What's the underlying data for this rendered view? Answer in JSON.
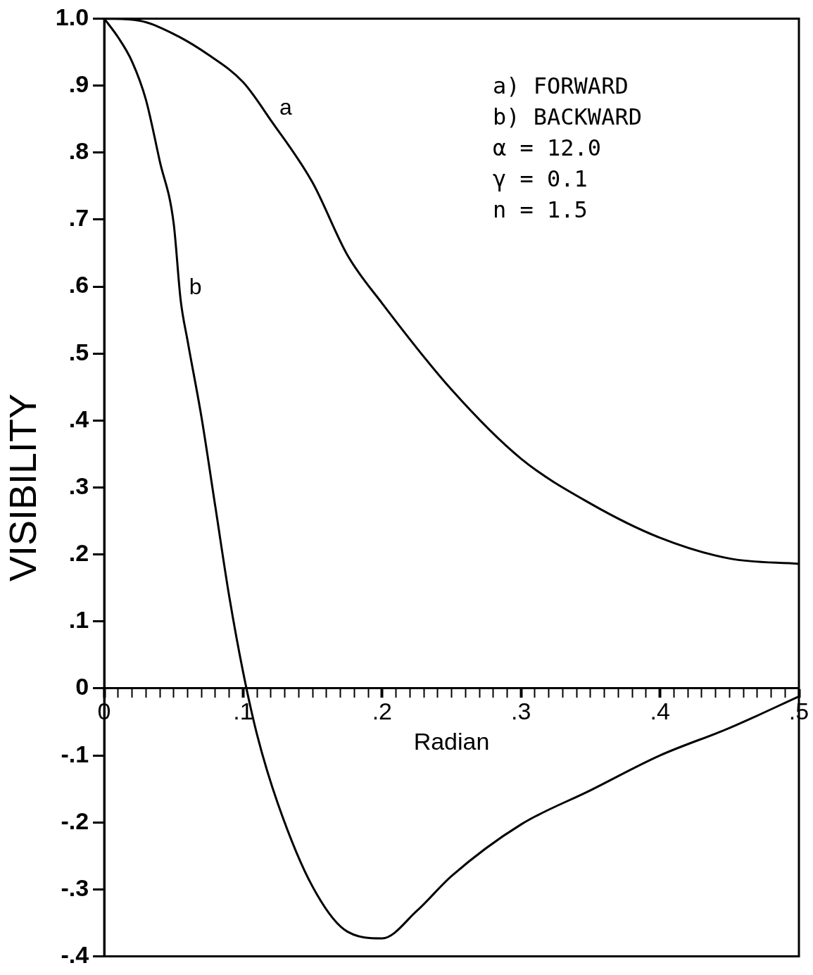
{
  "chart_data": {
    "type": "line",
    "xlabel": "Radian",
    "ylabel": "VISIBILITY",
    "xlim": [
      0,
      0.5
    ],
    "ylim": [
      -0.4,
      1.0
    ],
    "xticks": [
      {
        "value": 0,
        "label": "0"
      },
      {
        "value": 0.01,
        "label": null
      },
      {
        "value": 0.02,
        "label": null
      },
      {
        "value": 0.03,
        "label": null
      },
      {
        "value": 0.04,
        "label": null
      },
      {
        "value": 0.05,
        "label": null
      },
      {
        "value": 0.06,
        "label": null
      },
      {
        "value": 0.07,
        "label": null
      },
      {
        "value": 0.08,
        "label": null
      },
      {
        "value": 0.09,
        "label": null
      },
      {
        "value": 0.1,
        "label": ".1"
      },
      {
        "value": 0.11,
        "label": null
      },
      {
        "value": 0.12,
        "label": null
      },
      {
        "value": 0.13,
        "label": null
      },
      {
        "value": 0.14,
        "label": null
      },
      {
        "value": 0.15,
        "label": null
      },
      {
        "value": 0.16,
        "label": null
      },
      {
        "value": 0.17,
        "label": null
      },
      {
        "value": 0.18,
        "label": null
      },
      {
        "value": 0.19,
        "label": null
      },
      {
        "value": 0.2,
        "label": ".2"
      },
      {
        "value": 0.21,
        "label": null
      },
      {
        "value": 0.22,
        "label": null
      },
      {
        "value": 0.23,
        "label": null
      },
      {
        "value": 0.24,
        "label": null
      },
      {
        "value": 0.25,
        "label": null
      },
      {
        "value": 0.26,
        "label": null
      },
      {
        "value": 0.27,
        "label": null
      },
      {
        "value": 0.28,
        "label": null
      },
      {
        "value": 0.29,
        "label": null
      },
      {
        "value": 0.3,
        "label": ".3"
      },
      {
        "value": 0.31,
        "label": null
      },
      {
        "value": 0.32,
        "label": null
      },
      {
        "value": 0.33,
        "label": null
      },
      {
        "value": 0.34,
        "label": null
      },
      {
        "value": 0.35,
        "label": null
      },
      {
        "value": 0.36,
        "label": null
      },
      {
        "value": 0.37,
        "label": null
      },
      {
        "value": 0.38,
        "label": null
      },
      {
        "value": 0.39,
        "label": null
      },
      {
        "value": 0.4,
        "label": ".4"
      },
      {
        "value": 0.41,
        "label": null
      },
      {
        "value": 0.42,
        "label": null
      },
      {
        "value": 0.43,
        "label": null
      },
      {
        "value": 0.44,
        "label": null
      },
      {
        "value": 0.45,
        "label": null
      },
      {
        "value": 0.46,
        "label": null
      },
      {
        "value": 0.47,
        "label": null
      },
      {
        "value": 0.48,
        "label": null
      },
      {
        "value": 0.49,
        "label": null
      },
      {
        "value": 0.5,
        "label": ".5"
      }
    ],
    "yticks": [
      {
        "value": 1.0,
        "label": "1.0"
      },
      {
        "value": 0.9,
        "label": ".9"
      },
      {
        "value": 0.8,
        "label": ".8"
      },
      {
        "value": 0.7,
        "label": ".7"
      },
      {
        "value": 0.6,
        "label": ".6"
      },
      {
        "value": 0.5,
        "label": ".5"
      },
      {
        "value": 0.4,
        "label": ".4"
      },
      {
        "value": 0.3,
        "label": ".3"
      },
      {
        "value": 0.2,
        "label": ".2"
      },
      {
        "value": 0.1,
        "label": ".1"
      },
      {
        "value": 0,
        "label": "0"
      },
      {
        "value": -0.1,
        "label": "-.1"
      },
      {
        "value": -0.2,
        "label": "-.2"
      },
      {
        "value": -0.3,
        "label": "-.3"
      },
      {
        "value": -0.4,
        "label": "-.4"
      }
    ],
    "marker": "none",
    "series": [
      {
        "name": "a",
        "color": "#000000",
        "x": [
          0,
          0.025,
          0.05,
          0.075,
          0.1,
          0.12,
          0.15,
          0.175,
          0.2,
          0.25,
          0.3,
          0.35,
          0.4,
          0.45,
          0.5
        ],
        "values": [
          1.0,
          0.997,
          0.977,
          0.946,
          0.905,
          0.848,
          0.755,
          0.647,
          0.575,
          0.446,
          0.343,
          0.276,
          0.225,
          0.194,
          0.186
        ]
      },
      {
        "name": "b",
        "color": "#000000",
        "x": [
          0,
          0.01,
          0.02,
          0.03,
          0.04,
          0.05,
          0.055,
          0.06,
          0.07,
          0.08,
          0.09,
          0.1,
          0.11,
          0.125,
          0.15,
          0.175,
          0.2,
          0.225,
          0.25,
          0.3,
          0.35,
          0.4,
          0.45,
          0.5
        ],
        "values": [
          1.0,
          0.972,
          0.936,
          0.879,
          0.787,
          0.694,
          0.58,
          0.519,
          0.405,
          0.271,
          0.137,
          0.024,
          -0.069,
          -0.172,
          -0.296,
          -0.363,
          -0.373,
          -0.332,
          -0.28,
          -0.203,
          -0.152,
          -0.1,
          -0.059,
          -0.012
        ]
      }
    ],
    "annotations": [
      "a) FORWARD",
      "b) BACKWARD",
      "α = 12.0",
      "γ = 0.1",
      "n = 1.5"
    ]
  }
}
